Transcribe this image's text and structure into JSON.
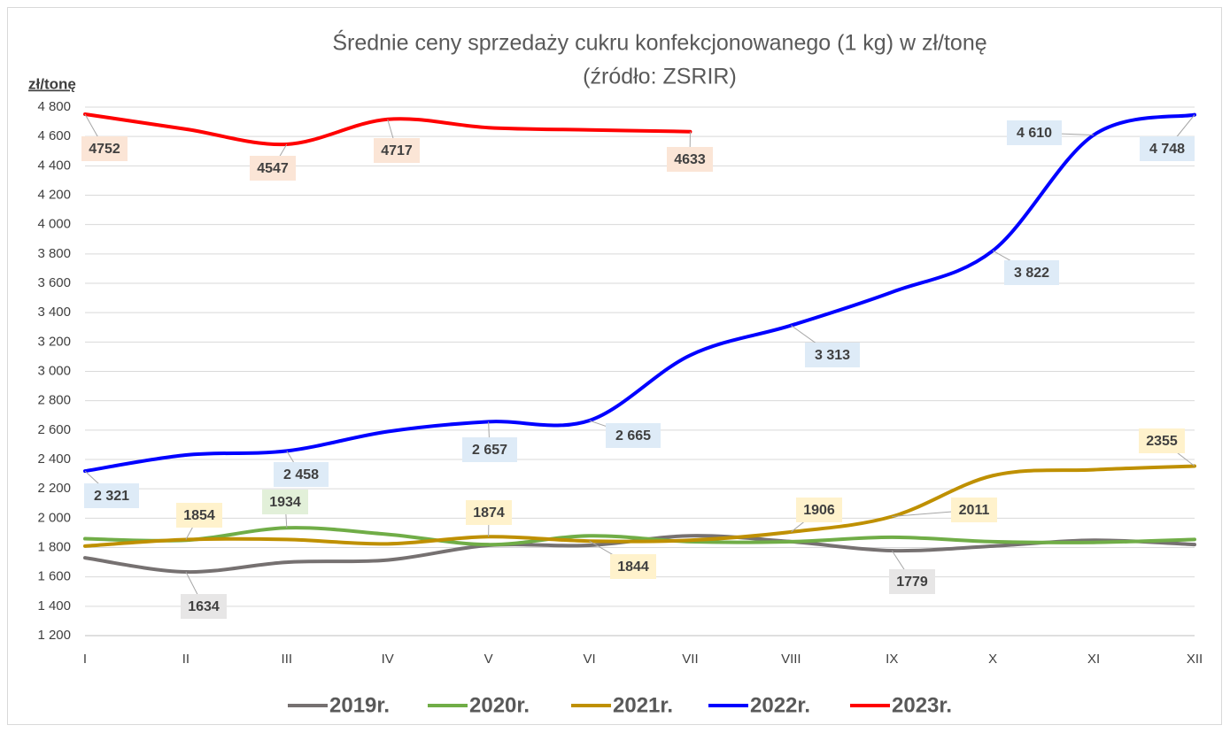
{
  "chart_data": {
    "type": "line",
    "title": "Średnie ceny sprzedaży cukru konfekcjonowanego (1 kg) w zł/tonę",
    "subtitle": "(źródło: ZSRIR)",
    "y_label": "zł/tonę",
    "categories": [
      "I",
      "II",
      "III",
      "IV",
      "V",
      "VI",
      "VII",
      "VIII",
      "IX",
      "X",
      "XI",
      "XII"
    ],
    "ylim": [
      1200,
      4800
    ],
    "yticks": [
      {
        "value": 1200,
        "label": "1 200"
      },
      {
        "value": 1400,
        "label": "1 400"
      },
      {
        "value": 1600,
        "label": "1 600"
      },
      {
        "value": 1800,
        "label": "1 800"
      },
      {
        "value": 2000,
        "label": "2 000"
      },
      {
        "value": 2200,
        "label": "2 200"
      },
      {
        "value": 2400,
        "label": "2 400"
      },
      {
        "value": 2600,
        "label": "2 600"
      },
      {
        "value": 2800,
        "label": "2 800"
      },
      {
        "value": 3000,
        "label": "3 000"
      },
      {
        "value": 3200,
        "label": "3 200"
      },
      {
        "value": 3400,
        "label": "3 400"
      },
      {
        "value": 3600,
        "label": "3 600"
      },
      {
        "value": 3800,
        "label": "3 800"
      },
      {
        "value": 4000,
        "label": "4 000"
      },
      {
        "value": 4200,
        "label": "4 200"
      },
      {
        "value": 4400,
        "label": "4 400"
      },
      {
        "value": 4600,
        "label": "4 600"
      },
      {
        "value": 4800,
        "label": "4 800"
      }
    ],
    "grid": true,
    "legend": "bottom",
    "series": [
      {
        "name": "2019r.",
        "color": "#767171",
        "label_color": "#e7e6e6",
        "values": [
          1730,
          1634,
          1700,
          1715,
          1815,
          1815,
          1880,
          1840,
          1779,
          1810,
          1850,
          1820
        ],
        "value_labels": [
          null,
          "1634",
          null,
          null,
          null,
          null,
          null,
          null,
          "1779",
          null,
          null,
          null
        ]
      },
      {
        "name": "2020r.",
        "color": "#70ad47",
        "label_color": "#e2f0d9",
        "values": [
          1860,
          1850,
          1934,
          1890,
          1820,
          1880,
          1840,
          1840,
          1870,
          1840,
          1835,
          1855
        ],
        "value_labels": [
          null,
          null,
          "1934",
          null,
          null,
          null,
          null,
          null,
          null,
          null,
          null,
          null
        ]
      },
      {
        "name": "2021r.",
        "color": "#bf9000",
        "label_color": "#fff2cc",
        "values": [
          1810,
          1854,
          1855,
          1825,
          1874,
          1844,
          1850,
          1906,
          2011,
          2290,
          2330,
          2355
        ],
        "value_labels": [
          null,
          "1854",
          null,
          null,
          "1874",
          "1844",
          null,
          "1906",
          "2011",
          null,
          null,
          "2355"
        ]
      },
      {
        "name": "2022r.",
        "color": "#0000ff",
        "label_color": "#deebf7",
        "values": [
          2321,
          2430,
          2458,
          2590,
          2657,
          2665,
          3110,
          3313,
          3540,
          3822,
          4610,
          4748
        ],
        "value_labels": [
          "2 321",
          null,
          "2 458",
          null,
          "2 657",
          "2 665",
          null,
          "3 313",
          null,
          "3 822",
          "4 610",
          "4 748"
        ]
      },
      {
        "name": "2023r.",
        "color": "#ff0000",
        "label_color": "#fbe5d6",
        "values": [
          4752,
          4650,
          4547,
          4717,
          4660,
          4645,
          4633,
          null,
          null,
          null,
          null,
          null
        ],
        "value_labels": [
          "4752",
          null,
          "4547",
          "4717",
          null,
          null,
          "4633",
          null,
          null,
          null,
          null,
          null
        ]
      }
    ]
  }
}
